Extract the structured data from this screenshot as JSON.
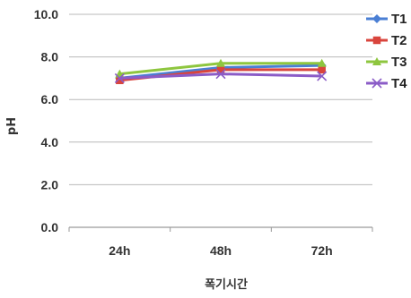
{
  "chart_data": {
    "type": "line",
    "categories": [
      "24h",
      "48h",
      "72h"
    ],
    "xlabel": "폭기시간",
    "ylabel": "pH",
    "ylim": [
      0,
      10
    ],
    "yticks": [
      "0.0",
      "2.0",
      "4.0",
      "6.0",
      "8.0",
      "10.0"
    ],
    "grid": true,
    "legend_position": "right",
    "series": [
      {
        "name": "T1",
        "values": [
          7.0,
          7.5,
          7.6
        ],
        "color": "#4a7fd4",
        "marker": "diamond"
      },
      {
        "name": "T2",
        "values": [
          6.9,
          7.4,
          7.4
        ],
        "color": "#d9453d",
        "marker": "square"
      },
      {
        "name": "T3",
        "values": [
          7.2,
          7.7,
          7.7
        ],
        "color": "#8ec63f",
        "marker": "triangle"
      },
      {
        "name": "T4",
        "values": [
          7.0,
          7.2,
          7.1
        ],
        "color": "#8b5cc7",
        "marker": "x"
      }
    ]
  }
}
